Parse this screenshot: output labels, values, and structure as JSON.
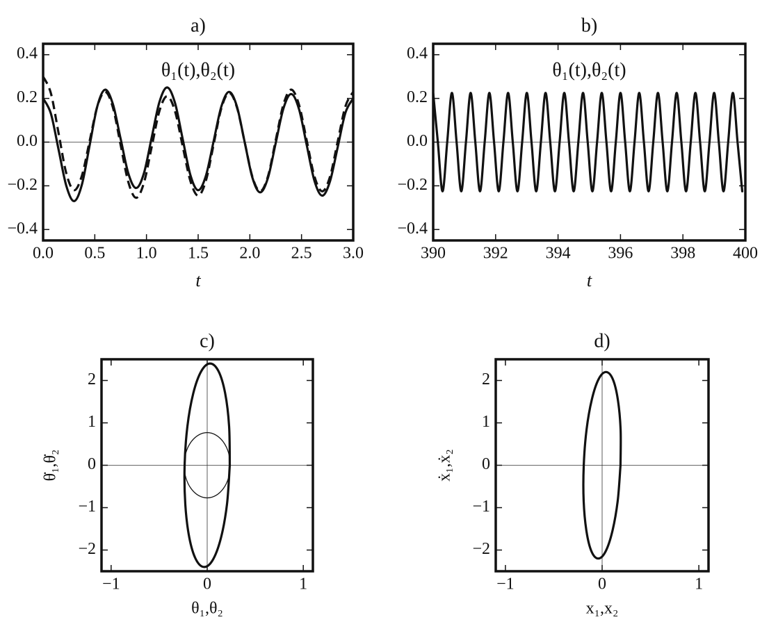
{
  "chart_data": [
    {
      "type": "line",
      "title": "a)",
      "annotation": "θ₁(t),θ₂(t)",
      "x_label": "t",
      "x": [
        0,
        0.075,
        0.15,
        0.225,
        0.3,
        0.375,
        0.45,
        0.525,
        0.6,
        0.675,
        0.75,
        0.825,
        0.9,
        0.975,
        1.05,
        1.125,
        1.2,
        1.275,
        1.35,
        1.425,
        1.5,
        1.575,
        1.65,
        1.725,
        1.8,
        1.875,
        1.95,
        2.025,
        2.1,
        2.175,
        2.25,
        2.325,
        2.4,
        2.475,
        2.55,
        2.625,
        2.7,
        2.775,
        2.85,
        2.925,
        3.0
      ],
      "series": [
        {
          "color": "#111111",
          "line_style": "solid",
          "values": [
            0.2,
            0.131,
            -0.035,
            -0.201,
            -0.27,
            -0.195,
            -0.015,
            0.165,
            0.24,
            0.174,
            0.015,
            -0.144,
            -0.21,
            -0.143,
            0.02,
            0.183,
            0.25,
            0.181,
            0.015,
            -0.151,
            -0.22,
            -0.154,
            0.005,
            0.164,
            0.23,
            0.163,
            0,
            -0.163,
            -0.23,
            -0.164,
            -0.005,
            0.154,
            0.22,
            0.152,
            -0.013,
            -0.177,
            -0.245,
            -0.18,
            -0.023,
            0.135,
            0.2
          ]
        },
        {
          "color": "#111111",
          "line_style": "dashed",
          "values": [
            0.3,
            0.224,
            0.04,
            -0.144,
            -0.22,
            -0.154,
            0.005,
            0.164,
            0.23,
            0.159,
            -0.013,
            -0.184,
            -0.255,
            -0.187,
            -0.023,
            0.142,
            0.21,
            0.143,
            -0.018,
            -0.178,
            -0.245,
            -0.176,
            -0.01,
            0.156,
            0.225,
            0.159,
            0,
            -0.159,
            -0.225,
            -0.157,
            0.008,
            0.172,
            0.24,
            0.172,
            0.008,
            -0.157,
            -0.225,
            -0.159,
            0.003,
            0.164,
            0.23
          ]
        }
      ],
      "xlim": [
        0,
        3
      ],
      "xticks": [
        {
          "value": 0,
          "label": "0.0"
        },
        0.5,
        {
          "value": 1,
          "label": "1.0"
        },
        1.5,
        {
          "value": 2,
          "label": "2.0"
        },
        2.5,
        {
          "value": 3,
          "label": "3.0"
        }
      ],
      "ylim": [
        -0.45,
        0.45
      ],
      "yticks": [
        {
          "value": -0.4,
          "label": "−0.4"
        },
        {
          "value": -0.2,
          "label": "−0.2"
        },
        {
          "value": 0,
          "label": "0.0"
        },
        0.2,
        0.4
      ],
      "zero_lines": [
        "y"
      ]
    },
    {
      "type": "line",
      "title": "b)",
      "annotation": "θ₁(t),θ₂(t)",
      "x_label": "t",
      "x": [
        390,
        390.15,
        390.3,
        390.45,
        390.6,
        390.75,
        390.9,
        391.05,
        391.2,
        391.35,
        391.5,
        391.65,
        391.8,
        391.95,
        392.1,
        392.25,
        392.4,
        392.55,
        392.7,
        392.85,
        393,
        393.15,
        393.3,
        393.45,
        393.6,
        393.75,
        393.9,
        394.05,
        394.2,
        394.35,
        394.5,
        394.65,
        394.8,
        394.95,
        395.1,
        395.25,
        395.4,
        395.55,
        395.7,
        395.85,
        396,
        396.15,
        396.3,
        396.45,
        396.6,
        396.75,
        396.9,
        397.05,
        397.2,
        397.35,
        397.5,
        397.65,
        397.8,
        397.95,
        398.1,
        398.25,
        398.4,
        398.55,
        398.7,
        398.85,
        399,
        399.15,
        399.3,
        399.45,
        399.6,
        399.75,
        399.9
      ],
      "series": [
        {
          "color": "#111111",
          "line_style": "solid",
          "values": [
            0.225,
            0,
            -0.225,
            0,
            0.225,
            0,
            -0.225,
            0,
            0.225,
            0,
            -0.225,
            0,
            0.225,
            0,
            -0.225,
            0,
            0.225,
            0,
            -0.225,
            0,
            0.225,
            0,
            -0.225,
            0,
            0.225,
            0,
            -0.225,
            0,
            0.225,
            0,
            -0.225,
            0,
            0.225,
            0,
            -0.225,
            0,
            0.225,
            0,
            -0.225,
            0,
            0.225,
            0,
            -0.225,
            0,
            0.225,
            0,
            -0.225,
            0,
            0.225,
            0,
            -0.225,
            0,
            0.225,
            0,
            -0.225,
            0,
            0.225,
            0,
            -0.225,
            0,
            0.225,
            0,
            -0.225,
            0,
            0.225,
            0,
            -0.225
          ]
        }
      ],
      "xlim": [
        390,
        400
      ],
      "xticks": [
        390,
        392,
        394,
        396,
        398,
        400
      ],
      "ylim": [
        -0.45,
        0.45
      ],
      "yticks": [
        {
          "value": -0.4,
          "label": "−0.4"
        },
        {
          "value": -0.2,
          "label": "−0.2"
        },
        {
          "value": 0,
          "label": "0.0"
        },
        0.2,
        0.4
      ],
      "zero_lines": [
        "y"
      ]
    },
    {
      "type": "line",
      "title": "c)",
      "x_label": "θ₁,θ₂",
      "y_label": "θ̇₁,θ̇₂",
      "series": [
        {
          "color": "#111111",
          "line_style": "solid",
          "line_weight": "thick",
          "x": [
            0.235,
            0.228,
            0.187,
            0.118,
            0.03,
            -0.062,
            -0.145,
            -0.206,
            -0.235,
            -0.228,
            -0.187,
            -0.118,
            -0.03,
            0.062,
            0.145,
            0.206,
            0.235
          ],
          "values": [
            0,
            0.919,
            1.697,
            2.218,
            2.4,
            2.218,
            1.697,
            0.919,
            0,
            -0.919,
            -1.697,
            -2.218,
            -2.4,
            -2.218,
            -1.697,
            -0.919,
            0
          ]
        },
        {
          "color": "#111111",
          "line_style": "solid",
          "line_weight": "thin",
          "x": [
            0.24,
            0.222,
            0.17,
            0.092,
            0,
            -0.092,
            -0.17,
            -0.222,
            -0.24,
            -0.222,
            -0.17,
            -0.092,
            0,
            0.092,
            0.17,
            0.222,
            0.24
          ],
          "values": [
            0,
            0.295,
            0.544,
            0.711,
            0.77,
            0.711,
            0.544,
            0.295,
            0,
            -0.295,
            -0.544,
            -0.711,
            -0.77,
            -0.711,
            -0.544,
            -0.295,
            0
          ]
        }
      ],
      "xlim": [
        -1.1,
        1.1
      ],
      "xticks": [
        {
          "value": -1,
          "label": "−1"
        },
        0,
        1
      ],
      "ylim": [
        -2.5,
        2.5
      ],
      "yticks": [
        {
          "value": -2,
          "label": "−2"
        },
        {
          "value": -1,
          "label": "−1"
        },
        0,
        1,
        2
      ],
      "zero_lines": [
        "x",
        "y"
      ]
    },
    {
      "type": "line",
      "title": "d)",
      "x_label": "x₁,x₂",
      "y_label": "ẋ₁,ẋ₂",
      "series": [
        {
          "color": "#111111",
          "line_style": "solid",
          "line_weight": "thick",
          "x": [
            0.19,
            0.191,
            0.162,
            0.11,
            0.04,
            -0.036,
            -0.106,
            -0.161,
            -0.19,
            -0.191,
            -0.162,
            -0.11,
            -0.04,
            0.036,
            0.106,
            0.161,
            0.19
          ],
          "values": [
            0,
            0.842,
            1.556,
            2.033,
            2.2,
            2.033,
            1.556,
            0.842,
            0,
            -0.842,
            -1.556,
            -2.033,
            -2.2,
            -2.033,
            -1.556,
            -0.842,
            0
          ]
        }
      ],
      "xlim": [
        -1.1,
        1.1
      ],
      "xticks": [
        {
          "value": -1,
          "label": "−1"
        },
        0,
        1
      ],
      "ylim": [
        -2.5,
        2.5
      ],
      "yticks": [
        {
          "value": -2,
          "label": "−2"
        },
        {
          "value": -1,
          "label": "−1"
        },
        0,
        1,
        2
      ],
      "zero_lines": [
        "x",
        "y"
      ]
    }
  ]
}
